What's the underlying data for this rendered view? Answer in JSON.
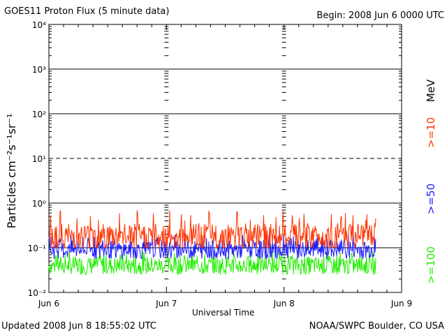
{
  "header": {
    "title": "GOES11 Proton Flux (5 minute data)",
    "begin": "Begin: 2008 Jun 6 0000 UTC"
  },
  "footer": {
    "updated": "Updated 2008 Jun  8 18:55:02 UTC",
    "credit": "NOAA/SWPC Boulder, CO USA"
  },
  "colors": {
    "ge10": "#ff3300",
    "ge50": "#1a1aff",
    "ge100": "#22ee00",
    "axis": "#000000"
  },
  "chart_data": {
    "type": "line",
    "y_scale": "log",
    "ylim": [
      0.01,
      10000
    ],
    "ylabel": "Particles cm⁻²s⁻¹sr⁻¹",
    "xlabel": "Universal Time",
    "x_range_days": [
      0,
      3
    ],
    "x_ticks": [
      "Jun 6",
      "Jun 7",
      "Jun 8",
      "Jun 9"
    ],
    "y_ticks": [
      "10⁻²",
      "10⁻¹",
      "10⁰",
      "10¹",
      "10²",
      "10³",
      "10⁴"
    ],
    "data_end_day": 2.78,
    "unit_label": "MeV",
    "series": [
      {
        "name": ">=10",
        "color": "#ff3300",
        "typical": 0.18,
        "range": [
          0.1,
          0.7
        ]
      },
      {
        "name": ">=50",
        "color": "#1a1aff",
        "typical": 0.09,
        "range": [
          0.05,
          0.2
        ]
      },
      {
        "name": ">=100",
        "color": "#22ee00",
        "typical": 0.04,
        "range": [
          0.022,
          0.085
        ]
      }
    ]
  }
}
